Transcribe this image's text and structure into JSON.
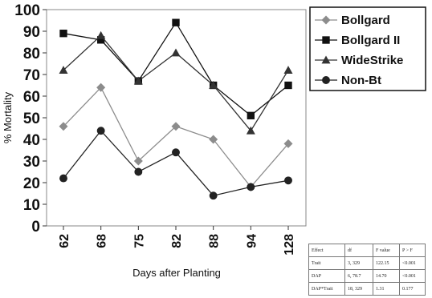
{
  "chart_data": {
    "type": "line",
    "xlabel": "Days after Planting",
    "ylabel": "% Mortality",
    "categories": [
      "62",
      "68",
      "75",
      "82",
      "88",
      "94",
      "128"
    ],
    "ylim": [
      0,
      100
    ],
    "yticks": [
      0,
      10,
      20,
      30,
      40,
      50,
      60,
      70,
      80,
      90,
      100
    ],
    "grid": false,
    "legend_position": "top-right",
    "series": [
      {
        "name": "Bollgard",
        "marker": "diamond",
        "color": "#8c8c8c",
        "values": [
          46,
          64,
          30,
          46,
          40,
          18,
          38
        ]
      },
      {
        "name": "Bollgard II",
        "marker": "square",
        "color": "#111111",
        "values": [
          89,
          86,
          67,
          94,
          65,
          51,
          65
        ]
      },
      {
        "name": "WideStrike",
        "marker": "triangle",
        "color": "#333333",
        "values": [
          72,
          88,
          67,
          80,
          65,
          44,
          72
        ]
      },
      {
        "name": "Non-Bt",
        "marker": "circle",
        "color": "#222222",
        "values": [
          22,
          44,
          25,
          34,
          14,
          18,
          21
        ]
      }
    ]
  },
  "stats_table": {
    "headers": [
      "Effect",
      "df",
      "F value",
      "P > F"
    ],
    "rows": [
      [
        "Trait",
        "3, 329",
        "122.15",
        "<0.001"
      ],
      [
        "DAP",
        "6, 78.7",
        "14.70",
        "<0.001"
      ],
      [
        "DAP*Trait",
        "18, 329",
        "1.31",
        "0.177"
      ]
    ]
  }
}
